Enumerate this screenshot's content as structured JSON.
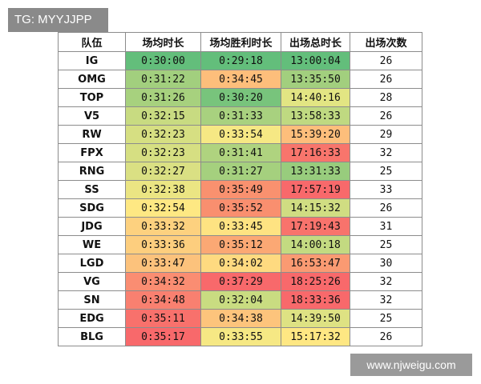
{
  "badge": {
    "text": "TG: MYYJJPP"
  },
  "watermark": {
    "text": "www.njweigu.com"
  },
  "table": {
    "headers": [
      "队伍",
      "场均时长",
      "场均胜利时长",
      "出场总时长",
      "出场次数"
    ],
    "rows": [
      [
        "IG",
        "0:30:00",
        "0:29:18",
        "13:00:04",
        "26"
      ],
      [
        "OMG",
        "0:31:22",
        "0:34:45",
        "13:35:50",
        "26"
      ],
      [
        "TOP",
        "0:31:26",
        "0:30:20",
        "14:40:16",
        "28"
      ],
      [
        "V5",
        "0:32:15",
        "0:31:33",
        "13:58:33",
        "26"
      ],
      [
        "RW",
        "0:32:23",
        "0:33:54",
        "15:39:20",
        "29"
      ],
      [
        "FPX",
        "0:32:23",
        "0:31:41",
        "17:16:33",
        "32"
      ],
      [
        "RNG",
        "0:32:27",
        "0:31:27",
        "13:31:33",
        "25"
      ],
      [
        "SS",
        "0:32:38",
        "0:35:49",
        "17:57:19",
        "33"
      ],
      [
        "SDG",
        "0:32:54",
        "0:35:52",
        "14:15:32",
        "26"
      ],
      [
        "JDG",
        "0:33:32",
        "0:33:45",
        "17:19:43",
        "31"
      ],
      [
        "WE",
        "0:33:36",
        "0:35:12",
        "14:00:18",
        "25"
      ],
      [
        "LGD",
        "0:33:47",
        "0:34:02",
        "16:53:47",
        "30"
      ],
      [
        "VG",
        "0:34:32",
        "0:37:29",
        "18:25:26",
        "32"
      ],
      [
        "SN",
        "0:34:48",
        "0:32:04",
        "18:33:36",
        "32"
      ],
      [
        "EDG",
        "0:35:11",
        "0:34:38",
        "14:39:50",
        "25"
      ],
      [
        "BLG",
        "0:35:17",
        "0:33:55",
        "15:17:32",
        "26"
      ]
    ],
    "cell_colors": [
      [
        "#63be7b",
        "#63be7b",
        "#63be7b"
      ],
      [
        "#a2cf7e",
        "#fdbe7b",
        "#a2cf7e"
      ],
      [
        "#a7d17e",
        "#78c47c",
        "#e2e583"
      ],
      [
        "#c8db81",
        "#a8d17f",
        "#bfd981"
      ],
      [
        "#d6df82",
        "#f6e884",
        "#fdbe7b"
      ],
      [
        "#d6df82",
        "#afd37f",
        "#f8756c"
      ],
      [
        "#dae083",
        "#a5d07e",
        "#98cc7d"
      ],
      [
        "#ebe583",
        "#f9916f",
        "#f8696b"
      ],
      [
        "#fee883",
        "#f98f6f",
        "#d0dd82"
      ],
      [
        "#fdd17f",
        "#fee382",
        "#f8736c"
      ],
      [
        "#fdce7e",
        "#fba874",
        "#c3da81"
      ],
      [
        "#fcc27c",
        "#feda80",
        "#fa9a72"
      ],
      [
        "#fa8d72",
        "#f8696b",
        "#f8696b"
      ],
      [
        "#f98070",
        "#c9dc81",
        "#f8696b"
      ],
      [
        "#f8716c",
        "#fdc47c",
        "#dee283"
      ],
      [
        "#f8696b",
        "#f6e884",
        "#fee783"
      ]
    ]
  }
}
